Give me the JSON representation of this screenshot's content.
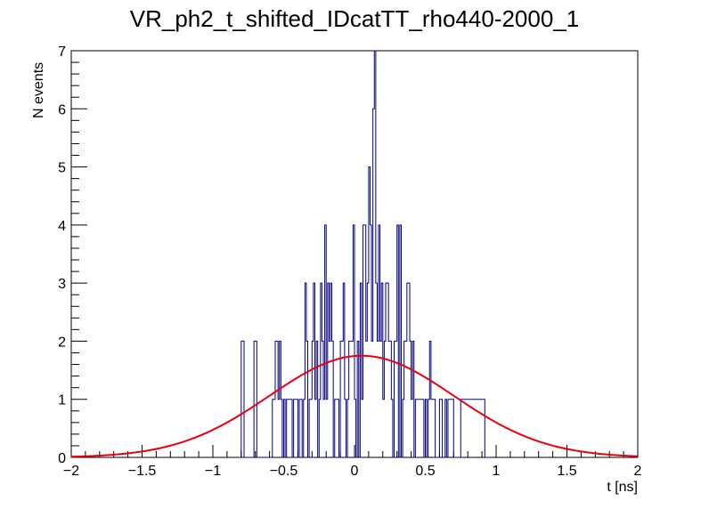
{
  "chart_data": {
    "type": "histogram",
    "title": "VR_ph2_t_shifted_IDcatTT_rho440-2000_1",
    "xlabel": "t [ns]",
    "ylabel": "N events",
    "xlim": [
      -2,
      2
    ],
    "ylim": [
      0,
      7
    ],
    "x_ticks": [
      -2,
      -1.5,
      -1,
      -0.5,
      0,
      0.5,
      1,
      1.5,
      2
    ],
    "x_tick_labels": [
      "−2",
      "−1.5",
      "−1",
      "−0.5",
      "0",
      "0.5",
      "1",
      "1.5",
      "2"
    ],
    "y_ticks": [
      0,
      1,
      2,
      3,
      4,
      5,
      6,
      7
    ],
    "y_tick_labels": [
      "0",
      "1",
      "2",
      "3",
      "4",
      "5",
      "6",
      "7"
    ],
    "bin_edges": [
      -0.8,
      -0.78,
      -0.71,
      -0.69,
      -0.58,
      -0.56,
      -0.54,
      -0.53,
      -0.52,
      -0.51,
      -0.5,
      -0.49,
      -0.48,
      -0.47,
      -0.46,
      -0.45,
      -0.44,
      -0.43,
      -0.42,
      -0.41,
      -0.4,
      -0.39,
      -0.38,
      -0.37,
      -0.36,
      -0.35,
      -0.34,
      -0.33,
      -0.32,
      -0.31,
      -0.3,
      -0.29,
      -0.28,
      -0.27,
      -0.26,
      -0.25,
      -0.24,
      -0.23,
      -0.22,
      -0.21,
      -0.2,
      -0.19,
      -0.18,
      -0.17,
      -0.16,
      -0.15,
      -0.14,
      -0.13,
      -0.12,
      -0.11,
      -0.1,
      -0.09,
      -0.08,
      -0.07,
      -0.06,
      -0.05,
      -0.04,
      -0.03,
      -0.02,
      -0.01,
      0.0,
      0.01,
      0.02,
      0.03,
      0.04,
      0.05,
      0.06,
      0.07,
      0.08,
      0.09,
      0.1,
      0.11,
      0.12,
      0.13,
      0.14,
      0.15,
      0.16,
      0.17,
      0.18,
      0.19,
      0.2,
      0.21,
      0.22,
      0.23,
      0.24,
      0.25,
      0.26,
      0.27,
      0.28,
      0.29,
      0.3,
      0.31,
      0.32,
      0.33,
      0.34,
      0.35,
      0.36,
      0.37,
      0.38,
      0.39,
      0.4,
      0.41,
      0.42,
      0.43,
      0.44,
      0.45,
      0.46,
      0.47,
      0.48,
      0.49,
      0.5,
      0.51,
      0.52,
      0.53,
      0.54,
      0.55,
      0.56,
      0.57,
      0.58,
      0.59,
      0.6,
      0.61,
      0.62,
      0.63,
      0.64,
      0.65,
      0.66,
      0.67,
      0.68,
      0.69,
      0.7,
      0.71,
      0.72,
      0.73,
      0.74,
      0.75,
      0.92,
      0.94
    ],
    "bin_counts": [
      2,
      0,
      2,
      0,
      1,
      2,
      1,
      2,
      1,
      0,
      1,
      0,
      1,
      1,
      1,
      1,
      0,
      1,
      1,
      1,
      0,
      1,
      1,
      0,
      1,
      3,
      2,
      0,
      1,
      1,
      2,
      3,
      1,
      2,
      0,
      1,
      3,
      2,
      1,
      4,
      1,
      3,
      2,
      3,
      2,
      0,
      1,
      1,
      1,
      0,
      2,
      2,
      3,
      1,
      0,
      1,
      2,
      2,
      2,
      4,
      1,
      0,
      2,
      0,
      3,
      1,
      4,
      4,
      2,
      3,
      5,
      4,
      2,
      6,
      7,
      3,
      2,
      4,
      2,
      3,
      1,
      2,
      3,
      3,
      2,
      2,
      1,
      0,
      2,
      2,
      4,
      0,
      4,
      0,
      1,
      2,
      2,
      3,
      3,
      2,
      1,
      2,
      0,
      1,
      1,
      1,
      1,
      1,
      1,
      0,
      1,
      0,
      1,
      2,
      1,
      1,
      1,
      0,
      0,
      0,
      1,
      1,
      0,
      0,
      1,
      0,
      1,
      1,
      1,
      1,
      0,
      0,
      0,
      0,
      0,
      1,
      0
    ],
    "series": [
      {
        "name": "histogram",
        "color": "#000080"
      },
      {
        "name": "gaussian fit",
        "color": "#e8000b",
        "amplitude": 1.75,
        "mean": 0.05,
        "sigma": 0.65
      }
    ]
  }
}
